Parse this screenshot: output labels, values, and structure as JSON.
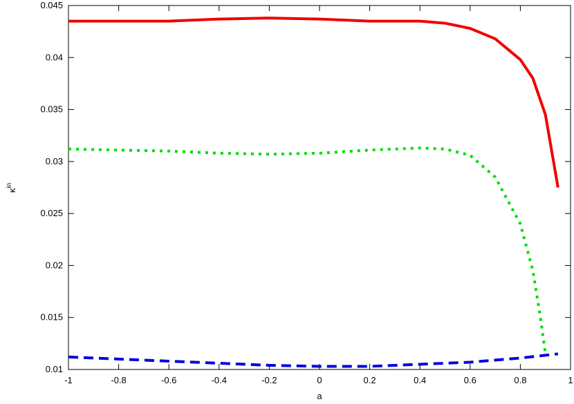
{
  "chart_data": {
    "type": "line",
    "xlabel": "a",
    "ylabel": "κ",
    "ylabel_superscript": "in",
    "xlim": [
      -1,
      1
    ],
    "ylim": [
      0.01,
      0.045
    ],
    "xticks": [
      -1,
      -0.8,
      -0.6,
      -0.4,
      -0.2,
      0,
      0.2,
      0.4,
      0.6,
      0.8,
      1
    ],
    "yticks": [
      0.01,
      0.015,
      0.02,
      0.025,
      0.03,
      0.035,
      0.04,
      0.045
    ],
    "series": [
      {
        "color": "#ee0000",
        "dash": "solid",
        "x": [
          -1,
          -0.8,
          -0.6,
          -0.4,
          -0.2,
          0,
          0.2,
          0.4,
          0.5,
          0.6,
          0.7,
          0.8,
          0.85,
          0.9,
          0.95
        ],
        "values": [
          0.0435,
          0.0435,
          0.0435,
          0.0437,
          0.0438,
          0.0437,
          0.0435,
          0.0435,
          0.0433,
          0.0428,
          0.0418,
          0.0398,
          0.038,
          0.0345,
          0.0275
        ]
      },
      {
        "color": "#00dd00",
        "dash": "dotted",
        "x": [
          -1,
          -0.8,
          -0.6,
          -0.4,
          -0.2,
          0,
          0.2,
          0.4,
          0.5,
          0.6,
          0.7,
          0.8,
          0.85,
          0.88,
          0.9
        ],
        "values": [
          0.0312,
          0.0311,
          0.031,
          0.0308,
          0.0307,
          0.0308,
          0.0311,
          0.0313,
          0.0312,
          0.0306,
          0.0285,
          0.024,
          0.0195,
          0.015,
          0.0115
        ]
      },
      {
        "color": "#0000dd",
        "dash": "dashed",
        "x": [
          -1,
          -0.6,
          -0.2,
          0,
          0.2,
          0.4,
          0.6,
          0.8,
          0.95
        ],
        "values": [
          0.0112,
          0.0108,
          0.0104,
          0.0103,
          0.0103,
          0.0105,
          0.0107,
          0.0111,
          0.0115
        ]
      }
    ]
  }
}
